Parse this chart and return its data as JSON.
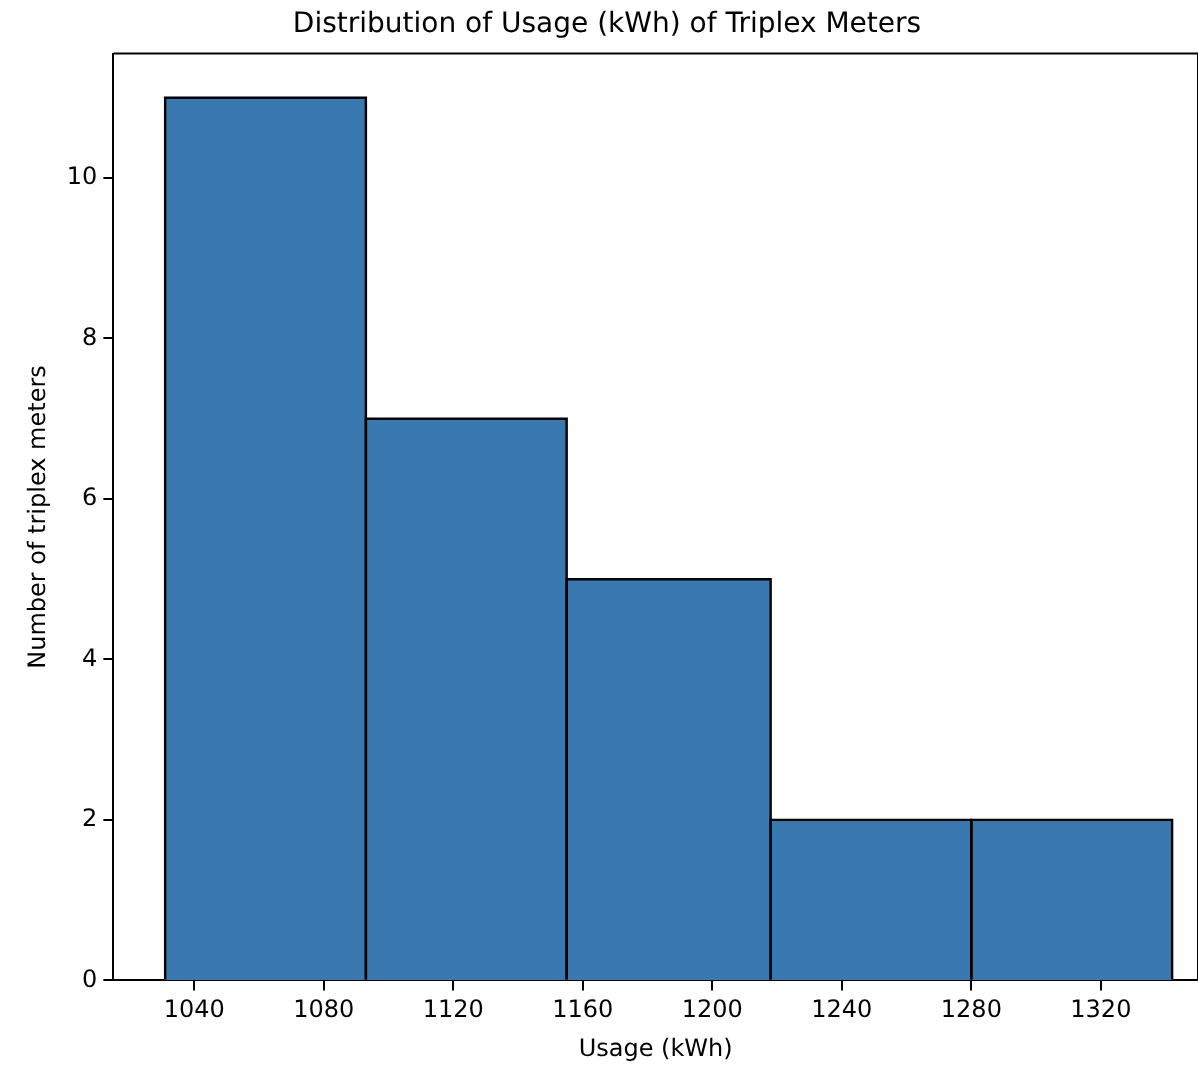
{
  "chart_data": {
    "type": "histogram",
    "title": "Distribution of Usage (kWh) of Triplex Meters",
    "xlabel": "Usage (kWh)",
    "ylabel": "Number of triplex meters",
    "bins": [
      1031,
      1093,
      1155,
      1218,
      1280,
      1342
    ],
    "values": [
      11,
      7,
      5,
      2,
      2
    ],
    "color": "#3a78b0",
    "xlim": [
      1015,
      1350
    ],
    "xticks": [
      1040,
      1080,
      1120,
      1160,
      1200,
      1240,
      1280,
      1320
    ],
    "ylim": [
      0,
      11.55
    ],
    "yticks": [
      0,
      2,
      4,
      6,
      8,
      10
    ],
    "grid": false,
    "legend": false
  }
}
